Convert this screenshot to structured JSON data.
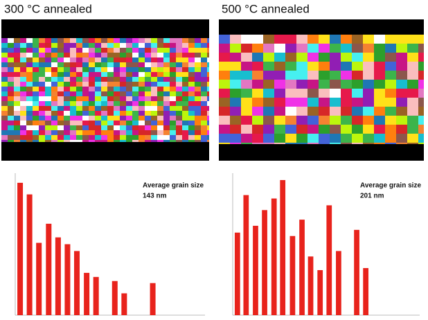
{
  "chart_data": [
    {
      "type": "bar",
      "title": "300 °C annealed",
      "annotation": [
        "Average grain size",
        "143 nm"
      ],
      "x": [
        0.047,
        0.07,
        0.093,
        0.117,
        0.14,
        0.163,
        0.186,
        0.21,
        0.233,
        0.279,
        0.302,
        0.372
      ],
      "values": [
        0.194,
        0.177,
        0.106,
        0.134,
        0.114,
        0.104,
        0.094,
        0.062,
        0.056,
        0.05,
        0.032,
        0.047
      ],
      "color": "#e8231c",
      "xlim": [
        0.035,
        0.5
      ],
      "ylim": [
        0,
        0.2
      ]
    },
    {
      "type": "bar",
      "title": "500 °C annealed",
      "annotation": [
        "Average grain size",
        "201 nm"
      ],
      "x": [
        0.057,
        0.079,
        0.103,
        0.126,
        0.15,
        0.172,
        0.197,
        0.221,
        0.243,
        0.267,
        0.29,
        0.314,
        0.36,
        0.383
      ],
      "values": [
        0.121,
        0.176,
        0.131,
        0.154,
        0.171,
        0.198,
        0.116,
        0.14,
        0.086,
        0.066,
        0.161,
        0.094,
        0.125,
        0.069
      ],
      "color": "#e8231c",
      "xlim": [
        0.045,
        0.52
      ],
      "ylim": [
        0,
        0.2
      ]
    }
  ]
}
